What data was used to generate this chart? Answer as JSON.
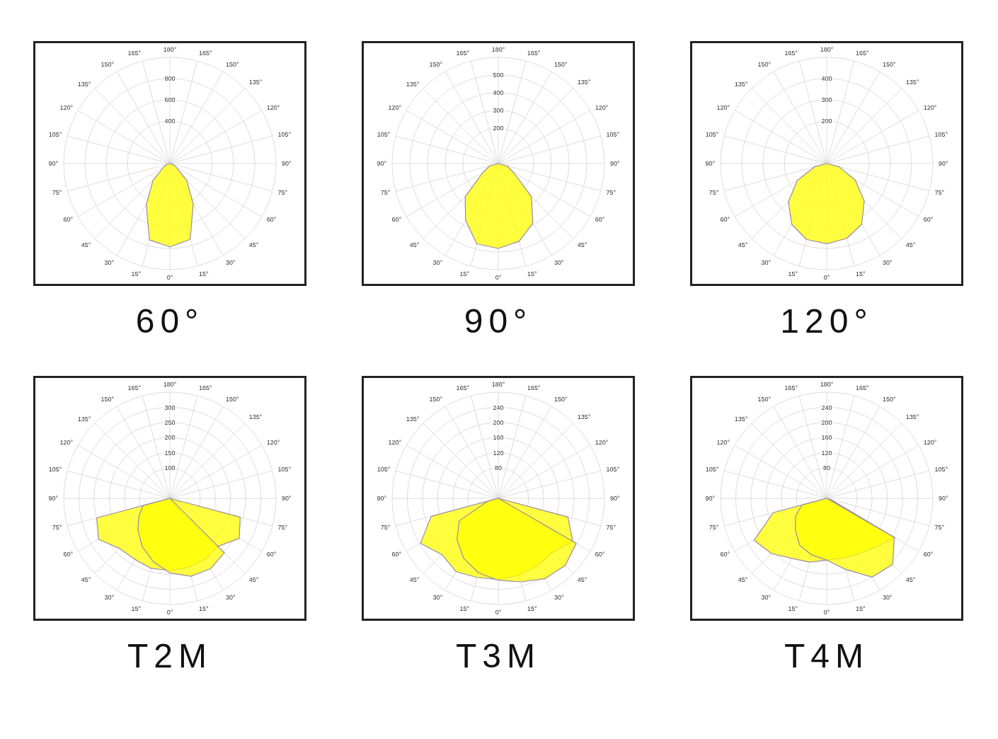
{
  "chart_data": [
    {
      "type": "radar",
      "title": "60°",
      "categories": [
        "180°",
        "165°",
        "150°",
        "135°",
        "120°",
        "105°",
        "90°",
        "75°",
        "60°",
        "45°",
        "30°",
        "15°",
        "0°",
        "15°",
        "30°",
        "45°",
        "60°",
        "75°",
        "90°",
        "105°",
        "120°",
        "135°",
        "150°",
        "165°"
      ],
      "series": [
        {
          "color": "#ffff00",
          "values": [
            0,
            0,
            0,
            0,
            0,
            0,
            0,
            30,
            70,
            225,
            440,
            740,
            785,
            745,
            445,
            225,
            70,
            30,
            0,
            0,
            0,
            0,
            0,
            0
          ]
        }
      ],
      "ylim": [
        0,
        1000
      ],
      "yticks": [
        400,
        600,
        800
      ],
      "grid": true
    },
    {
      "type": "radar",
      "title": "90°",
      "categories": [
        "180°",
        "165°",
        "150°",
        "135°",
        "120°",
        "105°",
        "90°",
        "75°",
        "60°",
        "45°",
        "30°",
        "15°",
        "0°",
        "15°",
        "30°",
        "45°",
        "60°",
        "75°",
        "90°",
        "105°",
        "120°",
        "135°",
        "150°",
        "165°"
      ],
      "series": [
        {
          "color": "#ffff00",
          "values": [
            0,
            0,
            0,
            0,
            0,
            0,
            0,
            50,
            100,
            265,
            390,
            455,
            480,
            470,
            370,
            265,
            100,
            50,
            0,
            0,
            0,
            0,
            0,
            0
          ]
        }
      ],
      "ylim": [
        0,
        600
      ],
      "yticks": [
        200,
        300,
        400,
        500
      ],
      "grid": true
    },
    {
      "type": "radar",
      "title": "120°",
      "categories": [
        "180°",
        "165°",
        "150°",
        "135°",
        "120°",
        "105°",
        "90°",
        "75°",
        "60°",
        "45°",
        "30°",
        "15°",
        "0°",
        "15°",
        "30°",
        "45°",
        "60°",
        "75°",
        "90°",
        "105°",
        "120°",
        "135°",
        "150°",
        "165°"
      ],
      "series": [
        {
          "color": "#ffff00",
          "values": [
            0,
            0,
            0,
            0,
            0,
            0,
            0,
            60,
            155,
            250,
            330,
            365,
            378,
            370,
            330,
            255,
            160,
            60,
            0,
            0,
            0,
            0,
            0,
            0
          ]
        }
      ],
      "ylim": [
        0,
        500
      ],
      "yticks": [
        200,
        300,
        400
      ],
      "grid": true
    },
    {
      "type": "radar",
      "title": "T2M",
      "categories": [
        "180°",
        "165°",
        "150°",
        "135°",
        "120°",
        "105°",
        "90°",
        "75°",
        "60°",
        "45°",
        "30°",
        "15°",
        "0°",
        "15°",
        "30°",
        "45°",
        "60°",
        "75°",
        "90°",
        "105°",
        "120°",
        "135°",
        "150°",
        "165°"
      ],
      "series": [
        {
          "color": "#ffff00",
          "values": [
            0,
            0,
            0,
            0,
            0,
            0,
            0,
            240,
            264,
            224,
            232,
            236,
            238,
            239,
            232,
            234,
            271,
            250,
            0,
            0,
            0,
            0,
            0,
            0
          ]
        },
        {
          "color": "#ffff00",
          "values": [
            0,
            0,
            0,
            0,
            0,
            0,
            0,
            0,
            0,
            254,
            268,
            266,
            246,
            215,
            183,
            149,
            118,
            91,
            0,
            0,
            0,
            0,
            0,
            0
          ]
        }
      ],
      "ylim": [
        0,
        350
      ],
      "yticks": [
        100,
        150,
        200,
        250,
        300
      ],
      "grid": true
    },
    {
      "type": "radar",
      "title": "T3M",
      "categories": [
        "180°",
        "165°",
        "150°",
        "135°",
        "120°",
        "105°",
        "90°",
        "75°",
        "60°",
        "45°",
        "30°",
        "15°",
        "0°",
        "15°",
        "30°",
        "45°",
        "60°",
        "75°",
        "90°",
        "105°",
        "120°",
        "135°",
        "150°",
        "165°"
      ],
      "series": [
        {
          "color": "#ffff00",
          "values": [
            0,
            0,
            0,
            0,
            0,
            0,
            0,
            190,
            227,
            202,
            206,
            210,
            214,
            216,
            223,
            210,
            237,
            183,
            0,
            0,
            0,
            0,
            0,
            0
          ]
        },
        {
          "color": "#ffff00",
          "values": [
            0,
            0,
            0,
            0,
            0,
            0,
            0,
            0,
            237,
            250,
            245,
            228,
            216,
            203,
            183,
            154,
            119,
            30,
            0,
            0,
            0,
            0,
            0,
            0
          ]
        }
      ],
      "ylim": [
        0,
        280
      ],
      "yticks": [
        80,
        120,
        160,
        200,
        240
      ],
      "grid": true
    },
    {
      "type": "radar",
      "title": "T4M",
      "categories": [
        "180°",
        "165°",
        "150°",
        "135°",
        "120°",
        "105°",
        "90°",
        "75°",
        "60°",
        "45°",
        "30°",
        "15°",
        "0°",
        "15°",
        "30°",
        "45°",
        "60°",
        "75°",
        "90°",
        "105°",
        "120°",
        "135°",
        "150°",
        "165°"
      ],
      "series": [
        {
          "color": "#ffff00",
          "values": [
            0,
            0,
            0,
            0,
            0,
            0,
            0,
            10,
            208,
            182,
            169,
            163,
            163,
            174,
            183,
            206,
            221,
            146,
            0,
            0,
            0,
            0,
            0,
            0
          ]
        },
        {
          "color": "#ffff00",
          "values": [
            0,
            0,
            0,
            0,
            0,
            0,
            0,
            0,
            206,
            246,
            240,
            194,
            163,
            154,
            143,
            117,
            95,
            68,
            0,
            0,
            0,
            0,
            0,
            0
          ]
        }
      ],
      "ylim": [
        0,
        280
      ],
      "yticks": [
        80,
        120,
        160,
        200,
        240
      ],
      "grid": true
    }
  ]
}
